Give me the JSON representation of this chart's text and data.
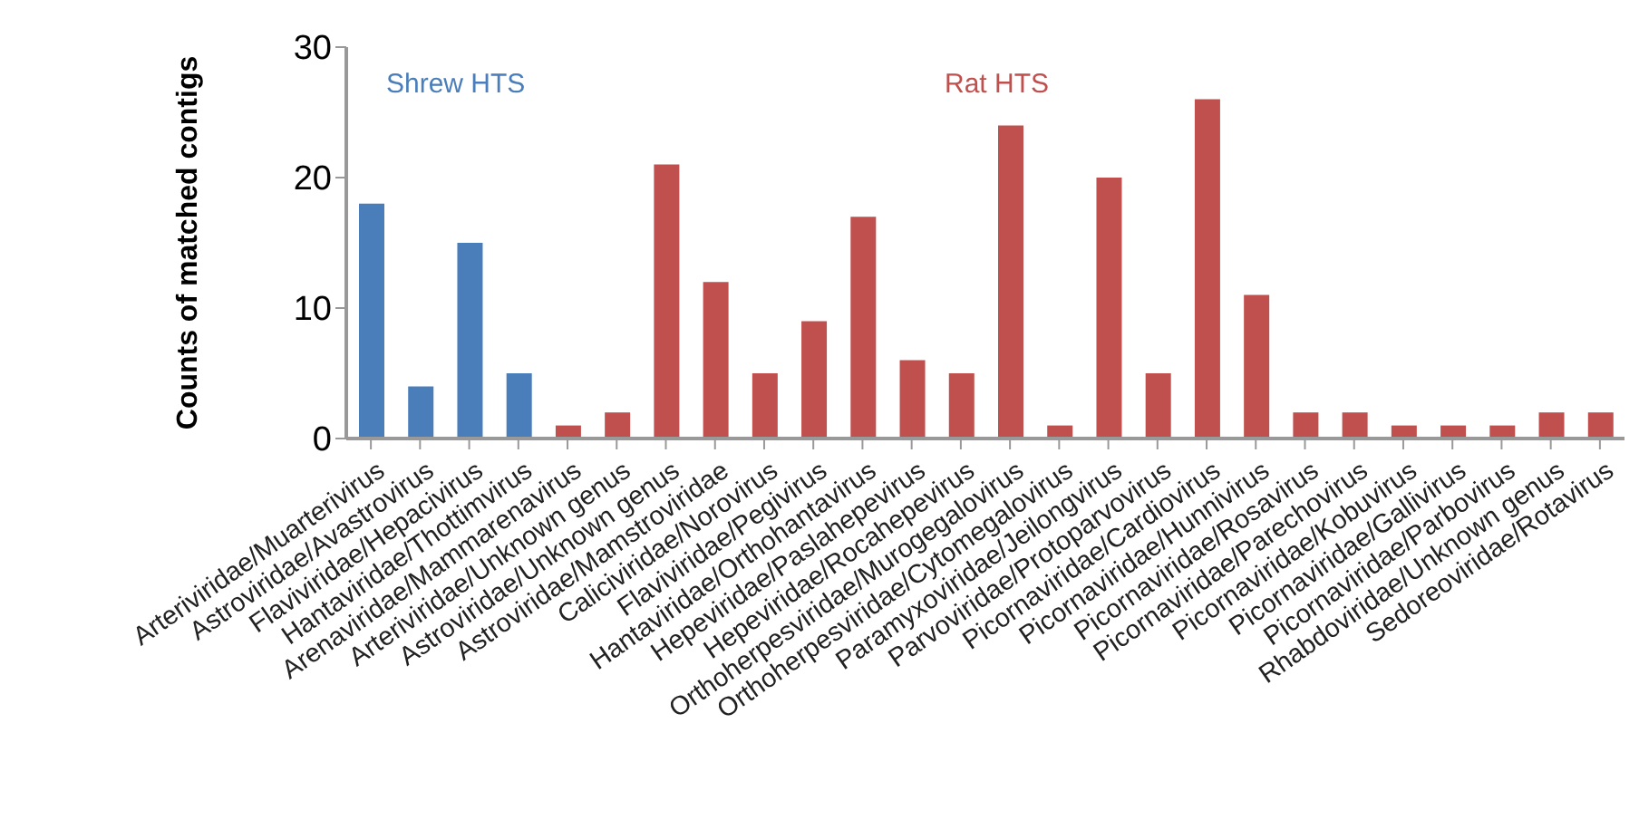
{
  "chart_data": {
    "type": "bar",
    "ylabel": "Counts of matched contigs",
    "categories": [
      "Arteriviridae/Muarterivirus",
      "Astroviridae/Avastrovirus",
      "Flaviviridae/Hepacivirus",
      "Hantaviridae/Thottimvirus",
      "Arenaviridae/Mammarenavirus",
      "Arteriviridae/Unknown genus",
      "Astroviridae/Unknown genus",
      "Astroviridae/Mamstroviridae",
      "Caliciviridae/Norovirus",
      "Flaviviridae/Pegivirus",
      "Hantaviridae/Orthohantavirus",
      "Hepeviridae/Paslahepevirus",
      "Hepeviridae/Rocahepevirus",
      "Orthoherpesviridae/Murogegalovirus",
      "Orthoherpesviridae/Cytomegalovirus",
      "Paramyxoviridae/Jeilongvirus",
      "Parvoviridae/Protoparvovirus",
      "Picornaviridae/Cardiovirus",
      "Picornaviridae/Hunnivirus",
      "Picornaviridae/Rosavirus",
      "Picornaviridae/Parechovirus",
      "Picornaviridae/Kobuvirus",
      "Picornaviridae/Gallivirus",
      "Picornaviridae/Parbovirus",
      "Rhabdoviridae/Unknown genus",
      "Sedoreoviridae/Rotavirus"
    ],
    "stacked": true,
    "series": [
      {
        "name": "Shrew HTS",
        "color": "#4a7ebb",
        "values": [
          18,
          4,
          15,
          5,
          null,
          null,
          null,
          null,
          null,
          null,
          null,
          null,
          null,
          null,
          null,
          null,
          null,
          null,
          null,
          null,
          null,
          null,
          null,
          null,
          null,
          null
        ]
      },
      {
        "name": "Rat HTS",
        "color": "#c0504d",
        "values": [
          null,
          null,
          null,
          null,
          1,
          2,
          21,
          12,
          5,
          9,
          17,
          6,
          5,
          24,
          1,
          20,
          5,
          26,
          11,
          2,
          2,
          1,
          1,
          1,
          2,
          2
        ]
      }
    ],
    "ylim": [
      0,
      30
    ],
    "yticks": [
      0,
      10,
      20,
      30
    ],
    "grid": false
  }
}
